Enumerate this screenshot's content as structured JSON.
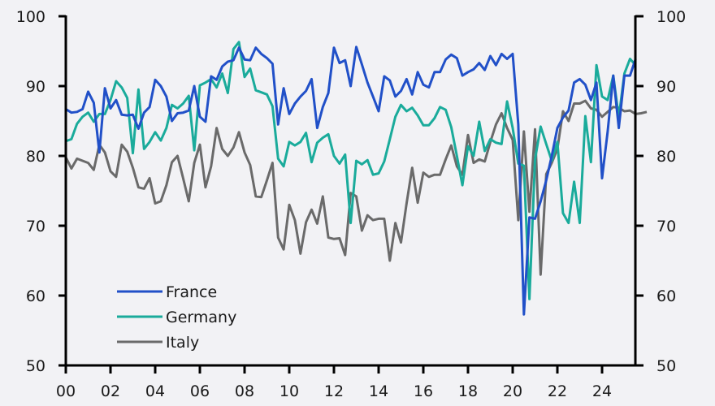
{
  "chart_data": {
    "type": "line",
    "title": "",
    "xlabel": "",
    "ylabel": "",
    "ylim": [
      50,
      100
    ],
    "y2lim": [
      50,
      100
    ],
    "yticks": [
      50,
      60,
      70,
      80,
      90,
      100
    ],
    "xlim": [
      2000,
      2025.5
    ],
    "xticks": [
      {
        "value": 2000,
        "label": "00"
      },
      {
        "value": 2002,
        "label": "02"
      },
      {
        "value": 2004,
        "label": "04"
      },
      {
        "value": 2006,
        "label": "06"
      },
      {
        "value": 2008,
        "label": "08"
      },
      {
        "value": 2010,
        "label": "10"
      },
      {
        "value": 2012,
        "label": "12"
      },
      {
        "value": 2014,
        "label": "14"
      },
      {
        "value": 2016,
        "label": "16"
      },
      {
        "value": 2018,
        "label": "18"
      },
      {
        "value": 2020,
        "label": "20"
      },
      {
        "value": 2022,
        "label": "22"
      },
      {
        "value": 2024,
        "label": "24"
      }
    ],
    "x_start": 2000,
    "x_step": 0.25,
    "grid": false,
    "legend_position": "bottom-left",
    "series": [
      {
        "name": "France",
        "color": "#2150c8",
        "values": [
          86.7,
          86.2,
          86.3,
          86.7,
          89.2,
          87.6,
          80.5,
          89.7,
          86.8,
          88.0,
          85.9,
          85.8,
          85.9,
          83.9,
          86.2,
          87.0,
          90.9,
          90.0,
          88.5,
          85.0,
          86.1,
          86.2,
          86.5,
          90.0,
          85.6,
          84.9,
          91.4,
          90.9,
          92.8,
          93.5,
          93.7,
          95.5,
          93.8,
          93.7,
          95.5,
          94.6,
          94.0,
          93.2,
          84.5,
          89.7,
          86.0,
          87.5,
          88.5,
          89.3,
          91.0,
          84.0,
          87.0,
          89.0,
          95.5,
          93.3,
          93.7,
          90.0,
          95.6,
          93.1,
          90.5,
          88.5,
          86.4,
          91.4,
          90.8,
          88.5,
          89.3,
          91.0,
          88.8,
          92.0,
          90.2,
          89.8,
          92.0,
          92.0,
          93.8,
          94.5,
          94.0,
          91.5,
          92.0,
          92.4,
          93.3,
          92.3,
          94.3,
          93.0,
          94.6,
          93.9,
          94.6,
          84.5,
          57.3,
          71.2,
          71.0,
          73.5,
          76.5,
          80.0,
          84.0,
          85.5,
          86.5,
          90.5,
          91.0,
          90.2,
          88.0,
          90.5,
          76.8,
          83.5,
          91.5,
          84.0,
          91.5,
          91.5,
          93.9
        ]
      },
      {
        "name": "Germany",
        "color": "#1aab9b",
        "values": [
          82.1,
          82.4,
          84.6,
          85.6,
          86.2,
          84.9,
          86.0,
          86.0,
          88.0,
          90.7,
          89.8,
          88.3,
          80.4,
          89.5,
          81.0,
          82.0,
          83.4,
          82.2,
          84.0,
          87.3,
          86.8,
          87.5,
          88.6,
          80.8,
          90.1,
          90.5,
          91.0,
          89.8,
          91.8,
          89.0,
          95.3,
          96.3,
          91.3,
          92.5,
          89.4,
          89.1,
          88.8,
          87.1,
          79.6,
          78.5,
          82.0,
          81.5,
          82.0,
          83.3,
          79.1,
          81.9,
          82.6,
          83.1,
          80.0,
          78.9,
          80.2,
          70.4,
          79.3,
          78.8,
          79.4,
          77.3,
          77.5,
          79.2,
          82.4,
          85.6,
          87.3,
          86.4,
          86.9,
          85.8,
          84.4,
          84.4,
          85.4,
          87.0,
          86.6,
          84.1,
          80.0,
          75.8,
          81.4,
          80.0,
          84.9,
          80.7,
          82.4,
          81.9,
          81.7,
          87.8,
          84.0,
          78.9,
          78.6,
          59.5,
          79.5,
          84.2,
          81.7,
          79.3,
          82.0,
          71.8,
          70.4,
          76.3,
          70.4,
          85.7,
          79.1,
          93.0,
          88.5,
          88.0,
          91.5,
          85.5,
          91.8,
          93.9,
          93.0
        ]
      },
      {
        "name": "Italy",
        "color": "#6a6a6a",
        "values": [
          79.8,
          78.2,
          79.6,
          79.3,
          79.0,
          78.0,
          81.6,
          80.5,
          77.8,
          77.0,
          81.6,
          80.6,
          78.3,
          75.5,
          75.3,
          76.8,
          73.2,
          73.5,
          75.8,
          79.1,
          80.0,
          76.8,
          73.5,
          79.0,
          81.6,
          75.5,
          78.5,
          84.0,
          81.0,
          80.0,
          81.2,
          83.4,
          80.5,
          78.7,
          74.2,
          74.1,
          76.5,
          79.0,
          68.3,
          66.6,
          73.0,
          70.8,
          66.0,
          70.5,
          72.3,
          70.3,
          74.2,
          68.3,
          68.1,
          68.2,
          65.8,
          74.7,
          74.2,
          69.3,
          71.5,
          70.8,
          71.0,
          71.0,
          65.0,
          70.4,
          67.6,
          73.2,
          78.3,
          73.3,
          77.6,
          77.0,
          77.3,
          77.3,
          79.5,
          81.5,
          78.5,
          77.3,
          83.0,
          79.0,
          79.5,
          79.2,
          82.0,
          84.5,
          86.1,
          84.0,
          82.3,
          70.8,
          83.5,
          72.0,
          83.8,
          63.0,
          77.4,
          79.0,
          81.0,
          86.4,
          85.0,
          87.5,
          87.5,
          87.9,
          86.8,
          86.6,
          85.6,
          86.3,
          87.0,
          86.9,
          86.4,
          86.5,
          86.0,
          86.1,
          86.3
        ]
      }
    ]
  }
}
